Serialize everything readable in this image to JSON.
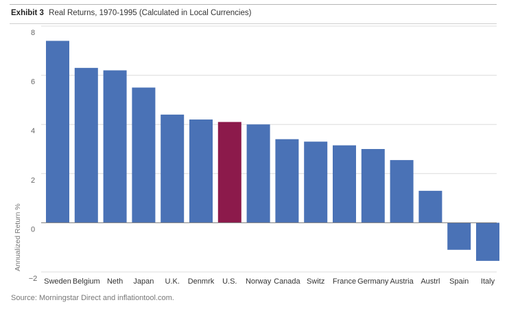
{
  "header": {
    "exhibit_label": "Exhibit 3",
    "title": "Real Returns, 1970-1995 (Calculated in Local Currencies)"
  },
  "source": "Source: Morningstar Direct and inflationtool.com.",
  "colors": {
    "bar": "#4a72b6",
    "highlight": "#8c1a4b",
    "grid": "#dcdcdc",
    "zero_line": "#7a7a7a"
  },
  "chart_data": {
    "type": "bar",
    "title": "Real Returns, 1970-1995 (Calculated in Local Currencies)",
    "xlabel": "",
    "ylabel": "Annualized Return %",
    "ylim": [
      -2,
      8
    ],
    "yticks": [
      -2,
      0,
      2,
      4,
      6,
      8
    ],
    "ytick_labels": [
      "−2",
      "0",
      "2",
      "4",
      "6",
      "8"
    ],
    "grid": true,
    "categories": [
      "Sweden",
      "Belgium",
      "Neth",
      "Japan",
      "U.K.",
      "Denmrk",
      "U.S.",
      "Norway",
      "Canada",
      "Switz",
      "France",
      "Germany",
      "Austria",
      "Austrl",
      "Spain",
      "Italy"
    ],
    "values": [
      7.4,
      6.3,
      6.2,
      5.5,
      4.4,
      4.2,
      4.1,
      4.0,
      3.4,
      3.3,
      3.15,
      3.0,
      2.55,
      1.3,
      -1.1,
      -1.55
    ],
    "highlight": "U.S."
  }
}
